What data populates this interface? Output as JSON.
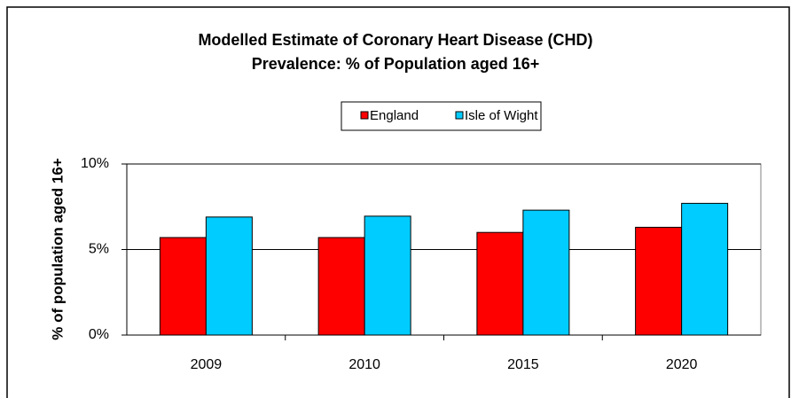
{
  "chart_data": {
    "type": "bar",
    "title": [
      "Modelled Estimate of Coronary Heart Disease (CHD)",
      "Prevalence:  % of Population aged 16+"
    ],
    "y_label": "% of population aged 16+",
    "categories": [
      "2009",
      "2010",
      "2015",
      "2020"
    ],
    "series": [
      {
        "name": "England",
        "color": "#ff0000",
        "values": [
          5.7,
          5.7,
          6.0,
          6.3
        ]
      },
      {
        "name": "Isle of Wight",
        "color": "#00ccff",
        "values": [
          6.9,
          6.95,
          7.3,
          7.7
        ]
      }
    ],
    "ylim": [
      0,
      10
    ],
    "yticks": [
      {
        "value": 0,
        "label": "0%"
      },
      {
        "value": 5,
        "label": "5%"
      },
      {
        "value": 10,
        "label": "10%"
      }
    ],
    "grid": true
  }
}
